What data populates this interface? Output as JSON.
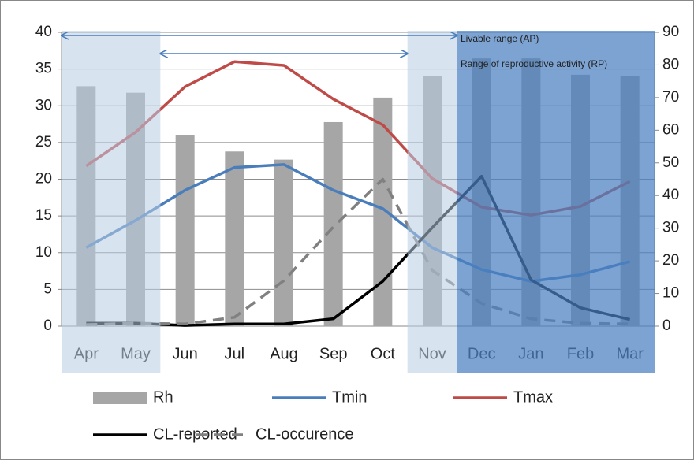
{
  "chart_data": {
    "type": "combo",
    "categories": [
      "Apr",
      "May",
      "Jun",
      "Jul",
      "Aug",
      "Sep",
      "Oct",
      "Nov",
      "Dec",
      "Jan",
      "Feb",
      "Mar"
    ],
    "series": [
      {
        "name": "Rh",
        "kind": "bar",
        "axis": "y2",
        "color": "#a6a6a6",
        "values": [
          73.5,
          71.5,
          58.5,
          53.5,
          51,
          62.5,
          70,
          76.5,
          82,
          82,
          77,
          76.5
        ]
      },
      {
        "name": "Tmin",
        "kind": "line",
        "color": "#4a7ebb",
        "values": [
          10.7,
          14.4,
          18.5,
          21.6,
          22,
          18.5,
          16,
          10.7,
          7.7,
          6.1,
          7,
          8.8
        ]
      },
      {
        "name": "Tmax",
        "kind": "line",
        "color": "#be4b48",
        "values": [
          21.8,
          26.4,
          32.6,
          36,
          35.5,
          30.9,
          27.4,
          20.1,
          16.2,
          15.1,
          16.3,
          19.7
        ]
      },
      {
        "name": "CL-reported",
        "kind": "line",
        "color": "#000000",
        "values": [
          0.4,
          0.4,
          0.1,
          0.3,
          0.3,
          1,
          6.1,
          13.4,
          20.4,
          6.3,
          2.5,
          0.9
        ]
      },
      {
        "name": "CL-occurence",
        "kind": "line",
        "dashed": true,
        "color": "#808080",
        "values": [
          0.2,
          0.4,
          0.3,
          1.2,
          6.2,
          13.5,
          20,
          7.6,
          3.1,
          1,
          0.4,
          0.3
        ]
      }
    ],
    "ylim": [
      0,
      40
    ],
    "yticks": [
      0,
      5,
      10,
      15,
      20,
      25,
      30,
      35,
      40
    ],
    "y2lim": [
      0,
      90
    ],
    "y2ticks": [
      0,
      10,
      20,
      30,
      40,
      50,
      60,
      70,
      80,
      90
    ],
    "grid": true,
    "annotations": [
      "Livable range (AP)",
      "Range of reproductive activity (RP)"
    ]
  }
}
